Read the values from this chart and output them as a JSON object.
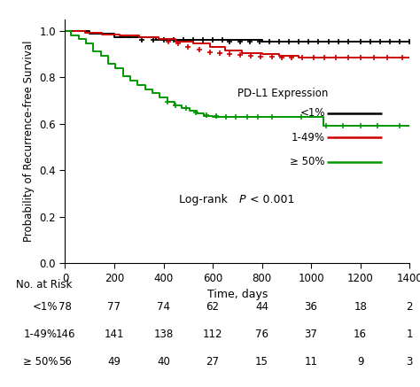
{
  "ylabel": "Probability of Recurrence-free Survival",
  "xlabel": "Time, days",
  "xlim": [
    0,
    1400
  ],
  "ylim": [
    0.0,
    1.05
  ],
  "yticks": [
    0.0,
    0.2,
    0.4,
    0.6,
    0.8,
    1.0
  ],
  "xticks": [
    0,
    200,
    400,
    600,
    800,
    1000,
    1200,
    1400
  ],
  "colors": {
    "black": "#000000",
    "red": "#cc0000",
    "green": "#009900"
  },
  "legend_title": "PD-L1 Expression",
  "legend_labels": [
    "<1%",
    "1-49%",
    "≥ 50%"
  ],
  "risk_table": {
    "label": "No. at Risk",
    "groups": [
      "<1%",
      "1-49%",
      "≥ 50%"
    ],
    "timepoints": [
      0,
      200,
      400,
      600,
      800,
      1000,
      1200,
      1400
    ],
    "values": [
      [
        78,
        77,
        74,
        62,
        44,
        36,
        18,
        2
      ],
      [
        146,
        141,
        138,
        112,
        76,
        37,
        16,
        1
      ],
      [
        56,
        49,
        40,
        27,
        15,
        11,
        9,
        3
      ]
    ]
  },
  "km_black": {
    "times": [
      0,
      50,
      100,
      150,
      200,
      280,
      370,
      460,
      550,
      600,
      700,
      800,
      900,
      1000,
      1100,
      1200,
      1300,
      1400
    ],
    "surv": [
      1.0,
      1.0,
      0.987,
      0.987,
      0.974,
      0.974,
      0.961,
      0.961,
      0.961,
      0.961,
      0.961,
      0.955,
      0.955,
      0.955,
      0.955,
      0.955,
      0.955,
      0.955
    ],
    "censor_times": [
      310,
      360,
      400,
      440,
      480,
      520,
      560,
      600,
      640,
      670,
      710,
      750,
      790,
      830,
      870,
      910,
      950,
      990,
      1030,
      1070,
      1110,
      1150,
      1200,
      1240,
      1280,
      1320,
      1360,
      1400
    ],
    "censor_surv": [
      0.961,
      0.961,
      0.961,
      0.961,
      0.961,
      0.961,
      0.961,
      0.961,
      0.961,
      0.955,
      0.955,
      0.955,
      0.955,
      0.955,
      0.955,
      0.955,
      0.955,
      0.955,
      0.955,
      0.955,
      0.955,
      0.955,
      0.955,
      0.955,
      0.955,
      0.955,
      0.955,
      0.955
    ]
  },
  "km_red": {
    "times": [
      0,
      80,
      150,
      220,
      300,
      380,
      450,
      520,
      590,
      650,
      720,
      800,
      870,
      950,
      1020,
      1100,
      1180,
      1300,
      1400
    ],
    "surv": [
      1.0,
      0.993,
      0.986,
      0.979,
      0.972,
      0.965,
      0.955,
      0.945,
      0.93,
      0.915,
      0.905,
      0.9,
      0.893,
      0.886,
      0.886,
      0.886,
      0.886,
      0.886,
      0.886
    ],
    "censor_times": [
      420,
      460,
      500,
      545,
      590,
      630,
      670,
      710,
      755,
      795,
      840,
      880,
      920,
      965,
      1010,
      1055,
      1100,
      1150,
      1200,
      1255,
      1310,
      1370
    ],
    "censor_surv": [
      0.955,
      0.945,
      0.93,
      0.92,
      0.91,
      0.903,
      0.9,
      0.896,
      0.893,
      0.89,
      0.888,
      0.887,
      0.886,
      0.886,
      0.886,
      0.886,
      0.886,
      0.886,
      0.886,
      0.886,
      0.886,
      0.886
    ]
  },
  "km_green": {
    "times": [
      0,
      25,
      55,
      85,
      115,
      145,
      175,
      205,
      235,
      265,
      295,
      325,
      355,
      385,
      415,
      445,
      475,
      505,
      535,
      565,
      600,
      640,
      680,
      720,
      760,
      800,
      850,
      900,
      980,
      1050,
      1100,
      1150,
      1200,
      1300,
      1400
    ],
    "surv": [
      1.0,
      0.982,
      0.964,
      0.946,
      0.911,
      0.893,
      0.857,
      0.839,
      0.804,
      0.786,
      0.768,
      0.75,
      0.732,
      0.714,
      0.696,
      0.679,
      0.668,
      0.657,
      0.646,
      0.635,
      0.629,
      0.629,
      0.629,
      0.629,
      0.629,
      0.629,
      0.629,
      0.629,
      0.629,
      0.59,
      0.59,
      0.59,
      0.59,
      0.59,
      0.59
    ],
    "censor_times": [
      415,
      450,
      490,
      530,
      575,
      615,
      655,
      695,
      740,
      785,
      840,
      960,
      1060,
      1130,
      1200,
      1270,
      1360
    ],
    "censor_surv": [
      0.696,
      0.679,
      0.668,
      0.65,
      0.638,
      0.632,
      0.629,
      0.629,
      0.629,
      0.629,
      0.629,
      0.629,
      0.59,
      0.59,
      0.59,
      0.59,
      0.59
    ]
  }
}
